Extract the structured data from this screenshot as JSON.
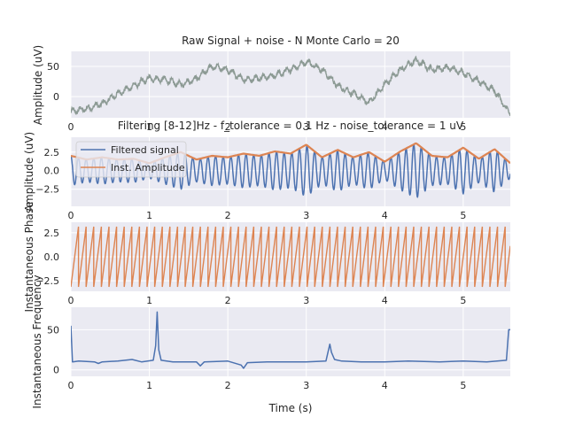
{
  "chart_data": [
    {
      "type": "line",
      "title": "Raw Signal + noise - N Monte Carlo = 20",
      "xlabel": "",
      "ylabel": "Amplitude (uV)",
      "xlim": [
        0,
        5.6
      ],
      "ylim": [
        -35,
        75
      ],
      "xticks": [
        0,
        1,
        2,
        3,
        4,
        5
      ],
      "xtick_labels": [
        "0",
        "1",
        "2",
        "3",
        "4",
        "5"
      ],
      "yticks": [
        0,
        50
      ],
      "ytick_labels": [
        "0",
        "50"
      ],
      "color": "#8c9a94",
      "series": [
        {
          "x": [
            0,
            0.2,
            0.4,
            0.6,
            0.8,
            1.0,
            1.2,
            1.4,
            1.6,
            1.8,
            2.0,
            2.2,
            2.4,
            2.6,
            2.8,
            3.0,
            3.2,
            3.4,
            3.6,
            3.8,
            4.0,
            4.2,
            4.4,
            4.6,
            4.8,
            5.0,
            5.2,
            5.4,
            5.6
          ],
          "y": [
            -25,
            -20,
            -12,
            5,
            18,
            30,
            28,
            20,
            30,
            50,
            45,
            28,
            30,
            35,
            45,
            58,
            45,
            18,
            5,
            -10,
            20,
            45,
            60,
            45,
            48,
            40,
            25,
            10,
            -30
          ]
        }
      ]
    },
    {
      "type": "line",
      "title": "Filtering [8-12]Hz - f_tolerance = 0.1 Hz - noise_tolerance = 1 uV",
      "xlabel": "",
      "ylabel": "Amplitude (uV)",
      "xlim": [
        0,
        5.6
      ],
      "ylim": [
        -4.8,
        4.5
      ],
      "xticks": [
        0,
        1,
        2,
        3,
        4,
        5
      ],
      "xtick_labels": [
        "0",
        "1",
        "2",
        "3",
        "4",
        "5"
      ],
      "yticks": [
        -2.5,
        0.0,
        2.5
      ],
      "ytick_labels": [
        "−2.5",
        "0.0",
        "2.5"
      ],
      "legend": {
        "entries": [
          "Filtered signal",
          "Inst. Amplitude"
        ],
        "location": "upper-left"
      },
      "carrier_frequency_hz": 10.3,
      "series": [
        {
          "name": "Inst. Amplitude",
          "color": "#dd8452",
          "x": [
            0,
            0.2,
            0.4,
            0.6,
            0.8,
            1.0,
            1.2,
            1.4,
            1.6,
            1.8,
            2.0,
            2.2,
            2.4,
            2.6,
            2.8,
            3.0,
            3.2,
            3.4,
            3.6,
            3.8,
            4.0,
            4.2,
            4.4,
            4.6,
            4.8,
            5.0,
            5.2,
            5.4,
            5.6
          ],
          "y": [
            2.0,
            1.5,
            1.8,
            1.5,
            1.6,
            1.0,
            1.8,
            2.5,
            1.5,
            2.0,
            1.8,
            2.3,
            2.0,
            2.6,
            2.3,
            3.5,
            1.8,
            2.8,
            1.8,
            2.5,
            1.2,
            2.6,
            3.7,
            2.0,
            1.8,
            3.1,
            1.6,
            2.9,
            1.0
          ]
        },
        {
          "name": "Filtered signal",
          "color": "#4c72b0"
        }
      ]
    },
    {
      "type": "line",
      "title": "",
      "xlabel": "",
      "ylabel": "Instantaneous Phase",
      "xlim": [
        0,
        5.6
      ],
      "ylim": [
        -3.6,
        3.6
      ],
      "xticks": [
        0,
        1,
        2,
        3,
        4,
        5
      ],
      "xtick_labels": [
        "0",
        "1",
        "2",
        "3",
        "4",
        "5"
      ],
      "yticks": [
        -2.5,
        0.0,
        2.5
      ],
      "ytick_labels": [
        "−2.5",
        "0.0",
        "2.5"
      ],
      "phase_range": [
        -3.14,
        3.14
      ],
      "frequency_hz": 10.3,
      "color": "#dd8452"
    },
    {
      "type": "line",
      "title": "",
      "xlabel": "Time (s)",
      "ylabel": "Instantaneous Frequency",
      "xlim": [
        0,
        5.6
      ],
      "ylim": [
        -8,
        78
      ],
      "xticks": [
        0,
        1,
        2,
        3,
        4,
        5
      ],
      "xtick_labels": [
        "0",
        "1",
        "2",
        "3",
        "4",
        "5"
      ],
      "yticks": [
        0,
        50
      ],
      "ytick_labels": [
        "0",
        "50"
      ],
      "color": "#4c72b0",
      "series": [
        {
          "x": [
            0,
            0.02,
            0.1,
            0.3,
            0.35,
            0.4,
            0.6,
            0.78,
            0.9,
            1.05,
            1.08,
            1.1,
            1.12,
            1.15,
            1.3,
            1.6,
            1.65,
            1.7,
            2.0,
            2.17,
            2.2,
            2.25,
            2.5,
            2.7,
            3.0,
            3.25,
            3.3,
            3.32,
            3.36,
            3.45,
            3.7,
            4.0,
            4.3,
            4.7,
            5.0,
            5.3,
            5.55,
            5.58,
            5.6
          ],
          "y": [
            55,
            10,
            11,
            10,
            8,
            10,
            11,
            13,
            10,
            12,
            30,
            72,
            25,
            12,
            10,
            10,
            5,
            10,
            11,
            6,
            2,
            9,
            10,
            10,
            10,
            11,
            32,
            22,
            13,
            11,
            10,
            10,
            11,
            10,
            11,
            10,
            12,
            50,
            50
          ]
        }
      ]
    }
  ]
}
